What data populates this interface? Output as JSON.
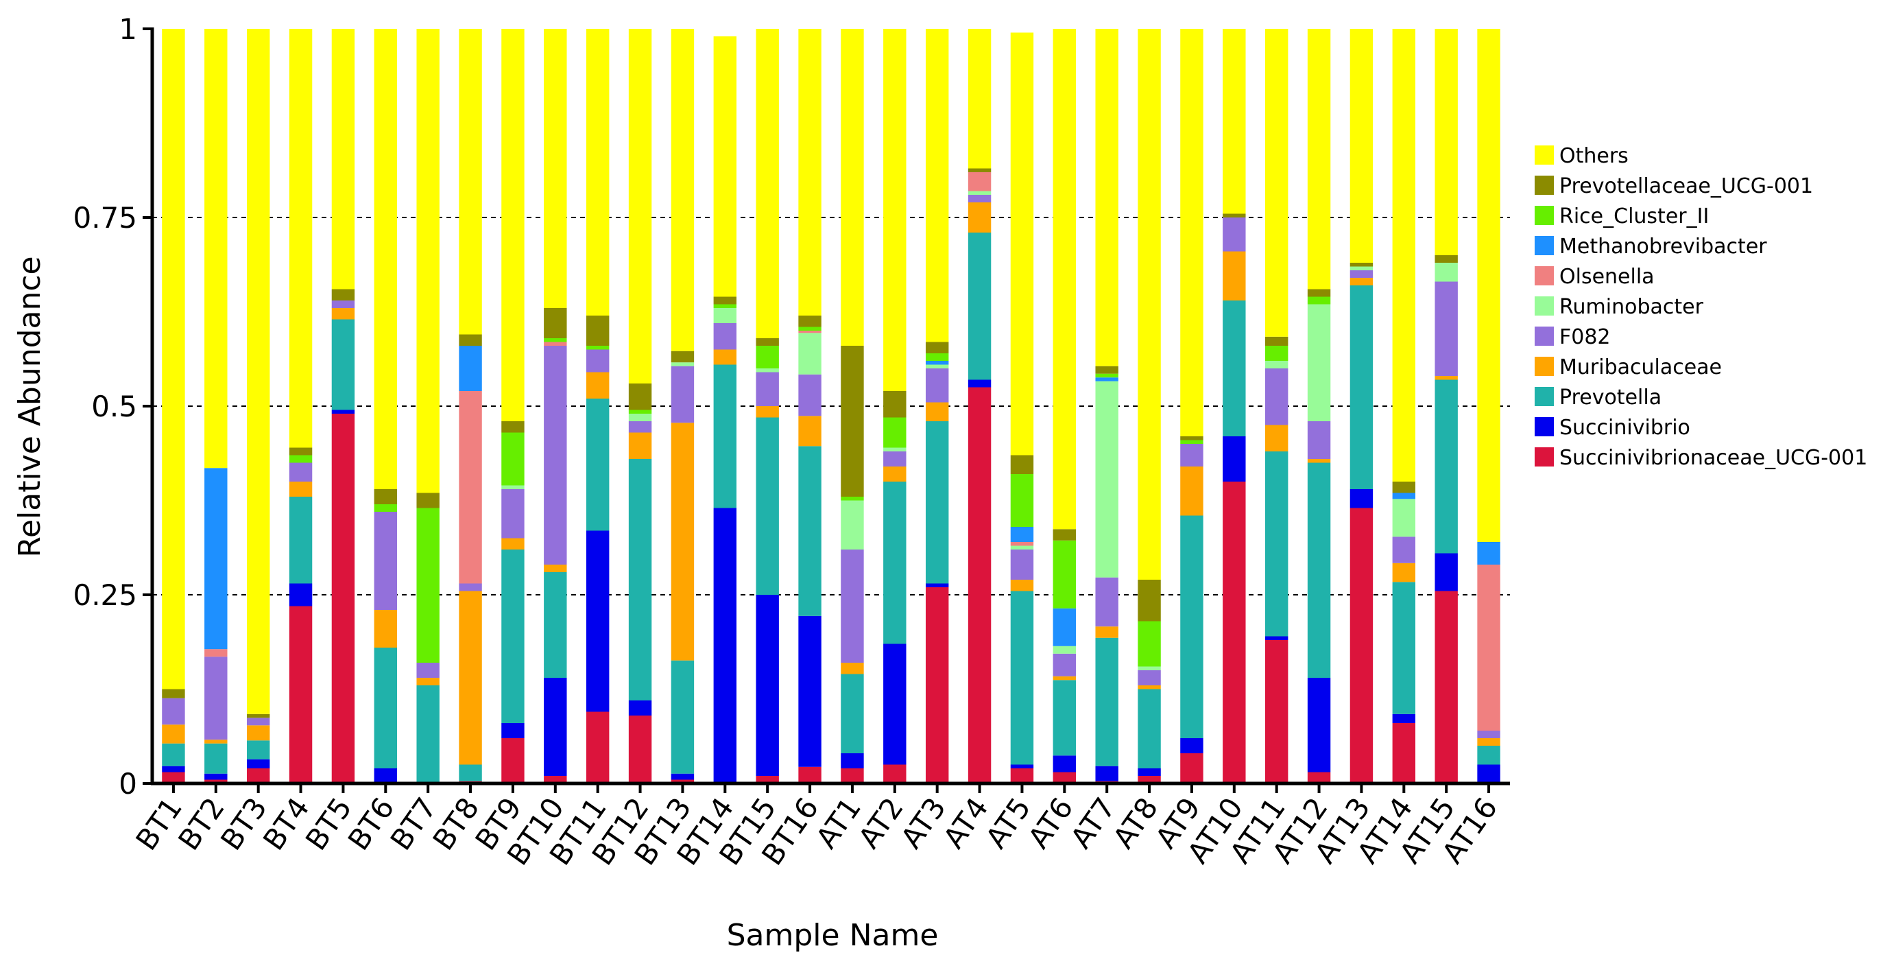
{
  "chart_data": {
    "type": "bar",
    "stacked": true,
    "xlabel": "Sample Name",
    "ylabel": "Relative Abundance",
    "ylim": [
      0,
      1
    ],
    "yticks": [
      0,
      0.25,
      0.5,
      0.75,
      1
    ],
    "ytick_labels": [
      "0",
      "0.25",
      "0.5",
      "0.75",
      "1"
    ],
    "grid": "horizontal dashed",
    "legend_position": "right",
    "categories": [
      "BT1",
      "BT2",
      "BT3",
      "BT4",
      "BT5",
      "BT6",
      "BT7",
      "BT8",
      "BT9",
      "BT10",
      "BT11",
      "BT12",
      "BT13",
      "BT14",
      "BT15",
      "BT16",
      "AT1",
      "AT2",
      "AT3",
      "AT4",
      "AT5",
      "AT6",
      "AT7",
      "AT8",
      "AT9",
      "AT10",
      "AT11",
      "AT12",
      "AT13",
      "AT14",
      "AT15",
      "AT16"
    ],
    "series": [
      {
        "name": "Succinivibrionaceae_UCG-001",
        "color": "#dc143c",
        "values": [
          0.015,
          0.005,
          0.02,
          0.235,
          0.49,
          0.0,
          0.0,
          0.003,
          0.06,
          0.01,
          0.095,
          0.09,
          0.005,
          0.0,
          0.01,
          0.022,
          0.02,
          0.025,
          0.26,
          0.525,
          0.02,
          0.015,
          0.003,
          0.01,
          0.04,
          0.4,
          0.19,
          0.015,
          0.365,
          0.08,
          0.255,
          0.0
        ]
      },
      {
        "name": "Succinivibrio",
        "color": "#0000ee",
        "values": [
          0.008,
          0.008,
          0.012,
          0.03,
          0.005,
          0.02,
          0.0,
          0.0,
          0.02,
          0.13,
          0.24,
          0.02,
          0.008,
          0.365,
          0.24,
          0.2,
          0.02,
          0.16,
          0.005,
          0.01,
          0.005,
          0.022,
          0.02,
          0.01,
          0.02,
          0.06,
          0.005,
          0.125,
          0.025,
          0.012,
          0.05,
          0.025
        ]
      },
      {
        "name": "Prevotella",
        "color": "#20b2aa",
        "values": [
          0.03,
          0.04,
          0.025,
          0.115,
          0.12,
          0.16,
          0.13,
          0.022,
          0.23,
          0.14,
          0.175,
          0.32,
          0.15,
          0.19,
          0.235,
          0.225,
          0.105,
          0.215,
          0.215,
          0.195,
          0.23,
          0.1,
          0.17,
          0.105,
          0.295,
          0.18,
          0.245,
          0.285,
          0.27,
          0.175,
          0.23,
          0.025
        ]
      },
      {
        "name": "Muribaculaceae",
        "color": "#ffa500",
        "values": [
          0.025,
          0.005,
          0.02,
          0.02,
          0.015,
          0.05,
          0.01,
          0.23,
          0.015,
          0.01,
          0.035,
          0.035,
          0.315,
          0.02,
          0.015,
          0.04,
          0.015,
          0.02,
          0.025,
          0.04,
          0.015,
          0.005,
          0.015,
          0.005,
          0.065,
          0.065,
          0.035,
          0.005,
          0.01,
          0.025,
          0.005,
          0.01
        ]
      },
      {
        "name": "F082",
        "color": "#9370db",
        "values": [
          0.035,
          0.11,
          0.01,
          0.025,
          0.01,
          0.13,
          0.02,
          0.01,
          0.065,
          0.29,
          0.03,
          0.015,
          0.075,
          0.035,
          0.045,
          0.055,
          0.15,
          0.02,
          0.045,
          0.01,
          0.04,
          0.03,
          0.065,
          0.02,
          0.03,
          0.045,
          0.075,
          0.05,
          0.01,
          0.035,
          0.125,
          0.01
        ]
      },
      {
        "name": "Ruminobacter",
        "color": "#98fb98",
        "values": [
          0.0,
          0.0,
          0.0,
          0.0,
          0.0,
          0.0,
          0.0,
          0.0,
          0.005,
          0.0,
          0.0,
          0.01,
          0.005,
          0.02,
          0.005,
          0.055,
          0.065,
          0.005,
          0.005,
          0.005,
          0.005,
          0.01,
          0.26,
          0.005,
          0.0,
          0.0,
          0.01,
          0.155,
          0.005,
          0.05,
          0.025,
          0.0
        ]
      },
      {
        "name": "Olsenella",
        "color": "#f08080",
        "values": [
          0.0,
          0.01,
          0.0,
          0.0,
          0.0,
          0.0,
          0.0,
          0.255,
          0.0,
          0.005,
          0.0,
          0.0,
          0.0,
          0.0,
          0.0,
          0.003,
          0.0,
          0.0,
          0.0,
          0.025,
          0.005,
          0.0,
          0.0,
          0.0,
          0.0,
          0.0,
          0.0,
          0.0,
          0.0,
          0.0,
          0.0,
          0.22
        ]
      },
      {
        "name": "Methanobrevibacter",
        "color": "#1e90ff",
        "values": [
          0.0,
          0.24,
          0.0,
          0.0,
          0.0,
          0.0,
          0.0,
          0.06,
          0.0,
          0.0,
          0.0,
          0.0,
          0.0,
          0.0,
          0.0,
          0.0,
          0.0,
          0.0,
          0.005,
          0.0,
          0.02,
          0.05,
          0.005,
          0.0,
          0.0,
          0.0,
          0.0,
          0.0,
          0.0,
          0.008,
          0.0,
          0.03
        ]
      },
      {
        "name": "Rice_Cluster_II",
        "color": "#66ee00",
        "values": [
          0.0,
          0.0,
          0.0,
          0.01,
          0.0,
          0.01,
          0.205,
          0.0,
          0.07,
          0.005,
          0.005,
          0.005,
          0.0,
          0.005,
          0.03,
          0.005,
          0.005,
          0.04,
          0.01,
          0.0,
          0.07,
          0.09,
          0.005,
          0.06,
          0.005,
          0.0,
          0.02,
          0.01,
          0.0,
          0.0,
          0.0,
          0.0
        ]
      },
      {
        "name": "Prevotellaceae_UCG-001",
        "color": "#8b8b00",
        "values": [
          0.012,
          0.0,
          0.005,
          0.01,
          0.015,
          0.02,
          0.02,
          0.015,
          0.015,
          0.04,
          0.04,
          0.035,
          0.015,
          0.01,
          0.01,
          0.015,
          0.2,
          0.035,
          0.015,
          0.005,
          0.025,
          0.015,
          0.01,
          0.055,
          0.005,
          0.005,
          0.012,
          0.01,
          0.005,
          0.015,
          0.01,
          0.0
        ]
      },
      {
        "name": "Others",
        "color": "#ffff00",
        "values": [
          0.875,
          0.582,
          0.908,
          0.555,
          0.345,
          0.61,
          0.615,
          0.405,
          0.52,
          0.37,
          0.38,
          0.47,
          0.427,
          0.345,
          0.41,
          0.38,
          0.42,
          0.48,
          0.415,
          0.185,
          0.56,
          0.663,
          0.447,
          0.73,
          0.54,
          0.245,
          0.408,
          0.345,
          0.31,
          0.6,
          0.3,
          0.68
        ]
      }
    ]
  }
}
